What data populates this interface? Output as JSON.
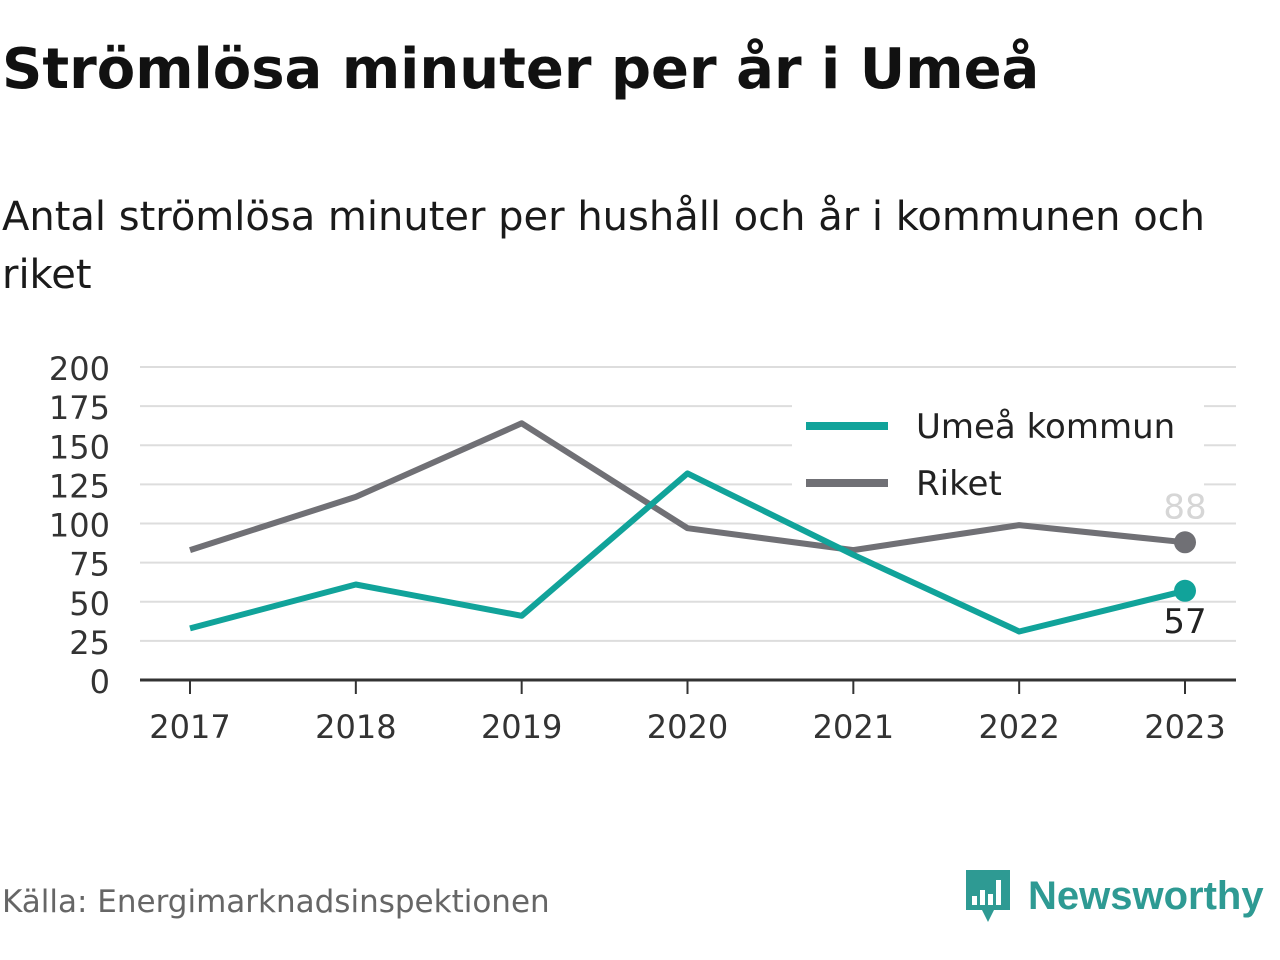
{
  "header": {
    "title": "Strömlösa minuter per år i Umeå",
    "subtitle": "Antal strömlösa minuter per hushåll och år i kommunen och riket"
  },
  "footer": {
    "source": "Källa: Energimarknadsinspektionen",
    "brand": "Newsworthy",
    "brand_icon": "newsworthy-logo-icon",
    "brand_color": "#2e9a93"
  },
  "chart_data": {
    "type": "line",
    "x": [
      "2017",
      "2018",
      "2019",
      "2020",
      "2021",
      "2022",
      "2023"
    ],
    "ylim": [
      0,
      200
    ],
    "yticks": [
      0,
      25,
      50,
      75,
      100,
      125,
      150,
      175,
      200
    ],
    "grid": true,
    "legend_position": "top-right",
    "series": [
      {
        "name": "Umeå kommun",
        "color": "#11a39a",
        "values": [
          33,
          61,
          41,
          132,
          80,
          31,
          57
        ],
        "end_label": "57"
      },
      {
        "name": "Riket",
        "color": "#707075",
        "values": [
          83,
          117,
          164,
          97,
          83,
          99,
          88
        ],
        "end_label": "88"
      }
    ]
  }
}
